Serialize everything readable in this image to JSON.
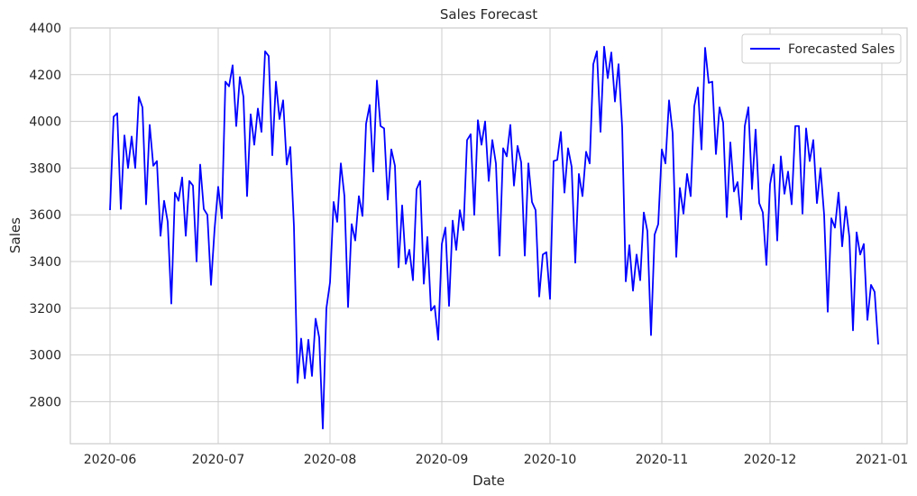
{
  "chart_data": {
    "type": "line",
    "title": "Sales Forecast",
    "xlabel": "Date",
    "ylabel": "Sales",
    "xlim": [
      "2020-05-21",
      "2021-01-08"
    ],
    "ylim": [
      2620,
      4400
    ],
    "x_ticks": [
      "2020-06",
      "2020-07",
      "2020-08",
      "2020-09",
      "2020-10",
      "2020-11",
      "2020-12",
      "2021-01"
    ],
    "x_tick_dates": [
      "2020-06-01",
      "2020-07-01",
      "2020-08-01",
      "2020-09-01",
      "2020-10-01",
      "2020-11-01",
      "2020-12-01",
      "2021-01-01"
    ],
    "y_ticks": [
      2800,
      3000,
      3200,
      3400,
      3600,
      3800,
      4000,
      4200,
      4400
    ],
    "grid": true,
    "legend_position": "top-right",
    "colors": {
      "series": "#0000ff",
      "grid": "#cccccc",
      "axes": "#cccccc",
      "background": "#ffffff"
    },
    "series": [
      {
        "name": "Forecasted Sales",
        "start_date": "2020-06-01",
        "step": "1 day",
        "values": [
          3620,
          4020,
          4035,
          3625,
          3940,
          3800,
          3935,
          3800,
          4105,
          4060,
          3645,
          3985,
          3810,
          3830,
          3510,
          3660,
          3570,
          3220,
          3695,
          3660,
          3760,
          3510,
          3745,
          3725,
          3400,
          3815,
          3625,
          3600,
          3300,
          3540,
          3720,
          3585,
          4170,
          4150,
          4240,
          3980,
          4190,
          4105,
          3680,
          4030,
          3900,
          4055,
          3955,
          4300,
          4280,
          3855,
          4170,
          4010,
          4090,
          3815,
          3890,
          3550,
          2880,
          3070,
          2900,
          3065,
          2910,
          3155,
          3075,
          2685,
          3200,
          3310,
          3655,
          3570,
          3820,
          3680,
          3205,
          3560,
          3490,
          3680,
          3595,
          3990,
          4070,
          3785,
          4175,
          3980,
          3970,
          3665,
          3880,
          3810,
          3375,
          3640,
          3390,
          3450,
          3320,
          3710,
          3745,
          3305,
          3505,
          3190,
          3210,
          3065,
          3475,
          3545,
          3210,
          3575,
          3450,
          3620,
          3535,
          3920,
          3945,
          3600,
          4005,
          3900,
          4000,
          3745,
          3920,
          3820,
          3425,
          3885,
          3850,
          3985,
          3725,
          3895,
          3825,
          3425,
          3820,
          3655,
          3620,
          3250,
          3430,
          3440,
          3240,
          3830,
          3835,
          3955,
          3695,
          3885,
          3805,
          3395,
          3775,
          3680,
          3870,
          3820,
          4245,
          4300,
          3955,
          4320,
          4185,
          4295,
          4085,
          4245,
          3975,
          3315,
          3470,
          3275,
          3430,
          3320,
          3610,
          3530,
          3085,
          3515,
          3560,
          3880,
          3820,
          4090,
          3950,
          3420,
          3715,
          3605,
          3775,
          3680,
          4065,
          4145,
          3880,
          4315,
          4165,
          4170,
          3860,
          4060,
          3995,
          3590,
          3910,
          3700,
          3740,
          3580,
          3980,
          4060,
          3710,
          3965,
          3650,
          3610,
          3385,
          3730,
          3815,
          3490,
          3850,
          3690,
          3785,
          3645,
          3980,
          3980,
          3605,
          3970,
          3830,
          3920,
          3650,
          3800,
          3600,
          3185,
          3585,
          3545,
          3695,
          3465,
          3635,
          3505,
          3105,
          3525,
          3430,
          3475,
          3150,
          3300,
          3270,
          3045
        ]
      }
    ]
  }
}
